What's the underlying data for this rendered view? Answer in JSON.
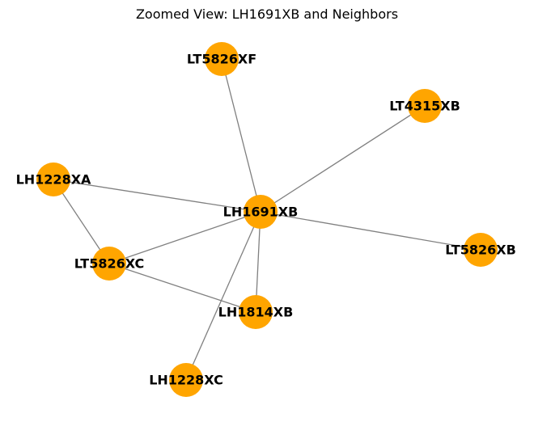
{
  "title": "Zoomed View: LH1691XB and Neighbors",
  "colors": {
    "node_fill": "#FFA500",
    "edge": "#808080",
    "label": "#000000",
    "background": "#FFFFFF"
  },
  "graph": {
    "nodes": [
      {
        "id": "LT5826XF",
        "label": "LT5826XF"
      },
      {
        "id": "LT4315XB",
        "label": "LT4315XB"
      },
      {
        "id": "LH1228XA",
        "label": "LH1228XA"
      },
      {
        "id": "LH1691XB",
        "label": "LH1691XB"
      },
      {
        "id": "LT5826XB",
        "label": "LT5826XB"
      },
      {
        "id": "LT5826XC",
        "label": "LT5826XC"
      },
      {
        "id": "LH1814XB",
        "label": "LH1814XB"
      },
      {
        "id": "LH1228XC",
        "label": "LH1228XC"
      }
    ],
    "edges": [
      {
        "source": "LH1691XB",
        "target": "LT5826XF"
      },
      {
        "source": "LH1691XB",
        "target": "LT4315XB"
      },
      {
        "source": "LH1691XB",
        "target": "LH1228XA"
      },
      {
        "source": "LH1691XB",
        "target": "LT5826XB"
      },
      {
        "source": "LH1691XB",
        "target": "LT5826XC"
      },
      {
        "source": "LH1691XB",
        "target": "LH1814XB"
      },
      {
        "source": "LH1691XB",
        "target": "LH1228XC"
      },
      {
        "source": "LH1228XA",
        "target": "LT5826XC"
      },
      {
        "source": "LT5826XC",
        "target": "LH1814XB"
      }
    ]
  }
}
